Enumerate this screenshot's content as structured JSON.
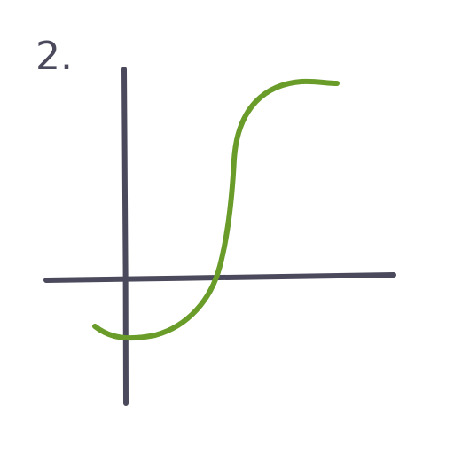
{
  "problem_label": "2.",
  "colors": {
    "axis": "#4a4a5c",
    "curve": "#6a9c2a",
    "label": "#4a4a5c",
    "background": "#ffffff"
  }
}
